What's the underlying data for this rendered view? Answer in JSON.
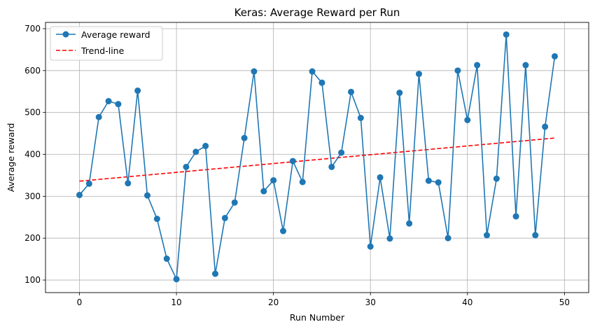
{
  "chart_data": {
    "type": "line",
    "title": "Keras: Average Reward per Run",
    "xlabel": "Run Number",
    "ylabel": "Average reward",
    "xlim": [
      -3.5,
      52.5
    ],
    "ylim": [
      70,
      715
    ],
    "xticks": [
      0,
      10,
      20,
      30,
      40,
      50
    ],
    "yticks": [
      100,
      200,
      300,
      400,
      500,
      600,
      700
    ],
    "grid": true,
    "legend_position": "top-left",
    "series": [
      {
        "name": "Average reward",
        "color": "#1f77b4",
        "style": "solid-with-circle-markers",
        "x": [
          0,
          1,
          2,
          3,
          4,
          5,
          6,
          7,
          8,
          9,
          10,
          11,
          12,
          13,
          14,
          15,
          16,
          17,
          18,
          19,
          20,
          21,
          22,
          23,
          24,
          25,
          26,
          27,
          28,
          29,
          30,
          31,
          32,
          33,
          34,
          35,
          36,
          37,
          38,
          39,
          40,
          41,
          42,
          43,
          44,
          45,
          46,
          47,
          48,
          49
        ],
        "values": [
          303,
          330,
          489,
          527,
          520,
          331,
          552,
          302,
          246,
          151,
          102,
          370,
          406,
          420,
          115,
          248,
          285,
          439,
          598,
          312,
          338,
          217,
          384,
          334,
          598,
          571,
          370,
          404,
          549,
          487,
          180,
          345,
          199,
          547,
          235,
          592,
          337,
          333,
          200,
          600,
          482,
          613,
          207,
          342,
          686,
          252,
          613,
          207,
          466,
          634
        ]
      },
      {
        "name": "Trend-line",
        "color": "#ff0000",
        "style": "dashed",
        "x": [
          0,
          49
        ],
        "values": [
          336,
          439
        ]
      }
    ]
  }
}
